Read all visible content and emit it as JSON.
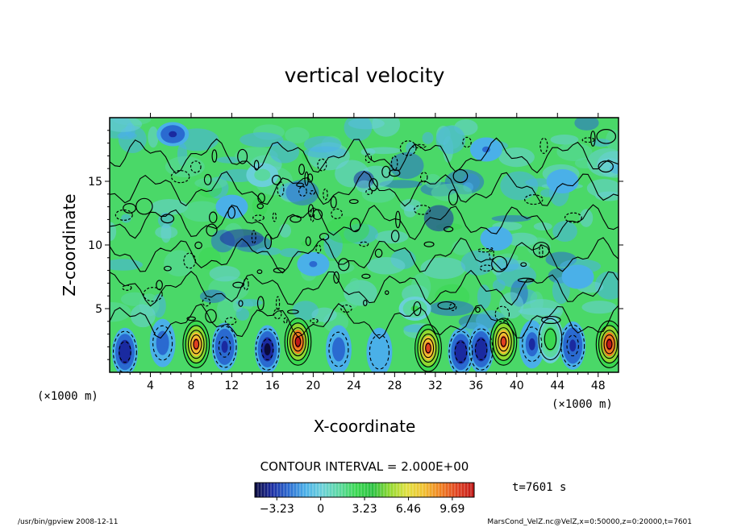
{
  "chart_data": {
    "type": "heatmap",
    "title": "vertical velocity",
    "xlabel": "X-coordinate",
    "ylabel": "Z-coordinate",
    "x_units_left": "(×1000 m)",
    "x_units_right": "(×1000 m)",
    "xlim": [
      0,
      50
    ],
    "ylim": [
      0,
      20
    ],
    "xticks": [
      4,
      8,
      12,
      16,
      20,
      24,
      28,
      32,
      36,
      40,
      44,
      48
    ],
    "yticks": [
      5,
      10,
      15
    ],
    "contour_interval_label": "CONTOUR INTERVAL = 2.000E+00",
    "colorbar": {
      "range": [
        -4.85,
        11.3
      ],
      "ticks": [
        -3.23,
        0,
        3.23,
        6.46,
        9.69
      ],
      "tick_labels": [
        "−3.23",
        "0",
        "3.23",
        "6.46",
        "9.69"
      ],
      "colors": [
        "#0a0a3c",
        "#1a2aa0",
        "#2a6ad0",
        "#4ab0e8",
        "#6ad0d8",
        "#5ad8a0",
        "#3ad850",
        "#2ac040",
        "#90d830",
        "#e0e040",
        "#f0c030",
        "#f08020",
        "#e04020",
        "#c01818"
      ]
    },
    "time_label": "t=7601 s",
    "lowlevel_cells": [
      {
        "x": 1.5,
        "z": 1.6,
        "w": -3.6
      },
      {
        "x": 5.2,
        "z": 2.3,
        "w": -2.0
      },
      {
        "x": 8.5,
        "z": 2.2,
        "w": 9.5
      },
      {
        "x": 11.3,
        "z": 2.0,
        "w": -3.2
      },
      {
        "x": 15.5,
        "z": 1.8,
        "w": -4.8
      },
      {
        "x": 18.5,
        "z": 2.4,
        "w": 11.0
      },
      {
        "x": 22.5,
        "z": 1.8,
        "w": -2.4
      },
      {
        "x": 26.5,
        "z": 1.6,
        "w": -1.3
      },
      {
        "x": 31.3,
        "z": 1.9,
        "w": 9.2
      },
      {
        "x": 34.5,
        "z": 1.6,
        "w": -3.4
      },
      {
        "x": 36.5,
        "z": 1.8,
        "w": -3.6
      },
      {
        "x": 38.7,
        "z": 2.4,
        "w": 9.6
      },
      {
        "x": 41.5,
        "z": 2.2,
        "w": -2.6
      },
      {
        "x": 43.3,
        "z": 2.6,
        "w": 3.0
      },
      {
        "x": 45.5,
        "z": 2.1,
        "w": -3.3
      },
      {
        "x": 49.1,
        "z": 2.2,
        "w": 10.5
      }
    ],
    "upper_features": [
      {
        "x": 6.2,
        "z": 18.7,
        "w": -3.0
      },
      {
        "x": 15.0,
        "z": 15.5,
        "w": 1.5
      },
      {
        "x": 37.0,
        "z": 17.5,
        "w": -1.6
      },
      {
        "x": 38.0,
        "z": 10.5,
        "w": -1.2
      },
      {
        "x": 44.5,
        "z": 15.0,
        "w": -1.2
      },
      {
        "x": 20.0,
        "z": 8.5,
        "w": -1.6
      },
      {
        "x": 30.0,
        "z": 5.0,
        "w": 2.5
      },
      {
        "x": 12.0,
        "z": 13.0,
        "w": -1.0
      },
      {
        "x": 46.0,
        "z": 7.5,
        "w": -1.0
      }
    ]
  },
  "footer": {
    "left": "/usr/bin/gpview   2008-12-11",
    "right": "MarsCond_VelZ.nc@VelZ,x=0:50000,z=0:20000,t=7601"
  }
}
